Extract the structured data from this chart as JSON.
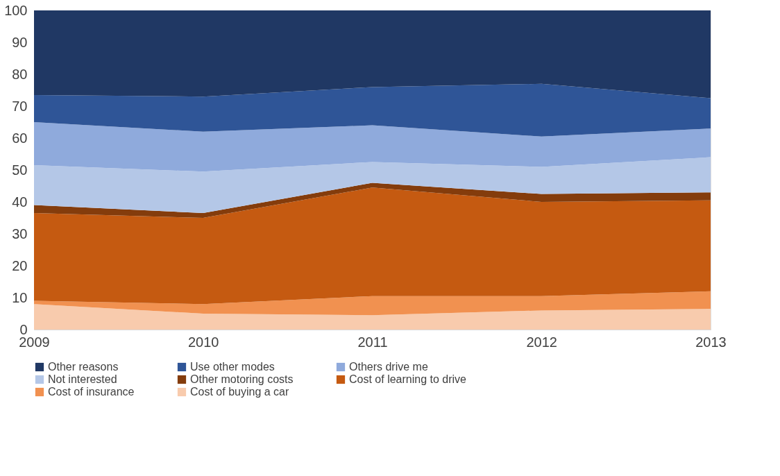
{
  "chart_data": {
    "type": "area",
    "stacked": true,
    "x": [
      2009,
      2010,
      2011,
      2012,
      2013
    ],
    "xlim": [
      2009,
      2013
    ],
    "xticks": [
      2009,
      2010,
      2011,
      2012,
      2013
    ],
    "ylim": [
      0,
      100
    ],
    "yticks": [
      0,
      10,
      20,
      30,
      40,
      50,
      60,
      70,
      80,
      90,
      100
    ],
    "grid": false,
    "legend": "bottom",
    "series": [
      {
        "name": "Cost of buying a car",
        "color": "#f8cbad",
        "values": [
          8,
          5,
          4.5,
          6,
          6.5
        ]
      },
      {
        "name": "Cost of insurance",
        "color": "#f19150",
        "values": [
          1,
          3,
          6,
          4.5,
          5.5
        ]
      },
      {
        "name": "Cost of learning to drive",
        "color": "#c55a11",
        "values": [
          27.5,
          27,
          34,
          29.5,
          28.5
        ]
      },
      {
        "name": "Other motoring costs",
        "color": "#843c0c",
        "values": [
          2.5,
          1.5,
          1.5,
          2.5,
          2.5
        ]
      },
      {
        "name": "Not interested",
        "color": "#b4c7e7",
        "values": [
          12.5,
          13,
          6.5,
          8.5,
          11
        ]
      },
      {
        "name": "Others drive me",
        "color": "#8faadc",
        "values": [
          13.5,
          12.5,
          11.5,
          9.5,
          9
        ]
      },
      {
        "name": "Use other modes",
        "color": "#2f5597",
        "values": [
          8.5,
          11,
          12,
          16.5,
          9.5
        ]
      },
      {
        "name": "Other reasons",
        "color": "#203864",
        "values": [
          26.5,
          27,
          24,
          23,
          27.5
        ]
      }
    ]
  }
}
